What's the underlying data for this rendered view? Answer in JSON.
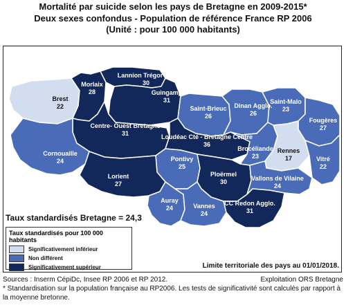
{
  "title": {
    "line1": "Mortalité par suicide selon les pays de Bretagne en 2009-2015*",
    "line2": "Deux sexes confondus - Population de référence France RP 2006",
    "line3": "(Unité : pour 100 000 habitants)"
  },
  "colors": {
    "inferieur": "#d3ddf0",
    "non_different": "#4a6cb8",
    "superieur": "#13285a",
    "border": "#ffffff"
  },
  "regions": [
    {
      "name": "Brest",
      "value": "22",
      "category": "inferieur"
    },
    {
      "name": "Morlaix",
      "value": "28",
      "category": "superieur"
    },
    {
      "name": "Lannion Trégor Cté",
      "value": "30",
      "category": "superieur"
    },
    {
      "name": "Guingamp",
      "value": "31",
      "category": "superieur"
    },
    {
      "name": "Saint-Brieuc",
      "value": "26",
      "category": "non_different"
    },
    {
      "name": "Dinan Agglo.",
      "value": "26",
      "category": "non_different"
    },
    {
      "name": "Saint-Malo",
      "value": "23",
      "category": "non_different"
    },
    {
      "name": "Fougères",
      "value": "27",
      "category": "non_different"
    },
    {
      "name": "Centre- Ouest Bretagne",
      "value": "31",
      "category": "superieur"
    },
    {
      "name": "Loudéac Cté - Bretagne Centre",
      "value": "36",
      "category": "superieur"
    },
    {
      "name": "Brocéliande",
      "value": "23",
      "category": "non_different"
    },
    {
      "name": "Rennes",
      "value": "17",
      "category": "inferieur"
    },
    {
      "name": "Cornouaille",
      "value": "24",
      "category": "non_different"
    },
    {
      "name": "Pontivy",
      "value": "25",
      "category": "non_different"
    },
    {
      "name": "Vitré",
      "value": "22",
      "category": "non_different"
    },
    {
      "name": "Lorient",
      "value": "27",
      "category": "superieur"
    },
    {
      "name": "Ploërmel",
      "value": "30",
      "category": "superieur"
    },
    {
      "name": "Vallons de Vilaine",
      "value": "24",
      "category": "non_different"
    },
    {
      "name": "Auray",
      "value": "24",
      "category": "non_different"
    },
    {
      "name": "Vannes",
      "value": "24",
      "category": "non_different"
    },
    {
      "name": "CC Redon Agglo.",
      "value": "31",
      "category": "superieur"
    }
  ],
  "rate_label": "Taux standardisés Bretagne = 24,3",
  "legend": {
    "title": "Taux standardisés pour 100 000 habitants",
    "items": [
      {
        "label": "Significativement inférieur",
        "category": "inferieur"
      },
      {
        "label": "Non différent",
        "category": "non_different"
      },
      {
        "label": "Significativement supérieur",
        "category": "superieur"
      }
    ]
  },
  "limit_note": "Limite territoriale des pays au 01/01/2018.",
  "footer": {
    "sources": "Sources : Inserm CépiDc, Insee RP 2006 et RP 2012.",
    "exploitation": "Exploitation ORS Bretagne",
    "note": "* Standardisation sur la population française au RP2006. Les tests de significativité sont calculés par rapport à la moyenne bretonne."
  }
}
